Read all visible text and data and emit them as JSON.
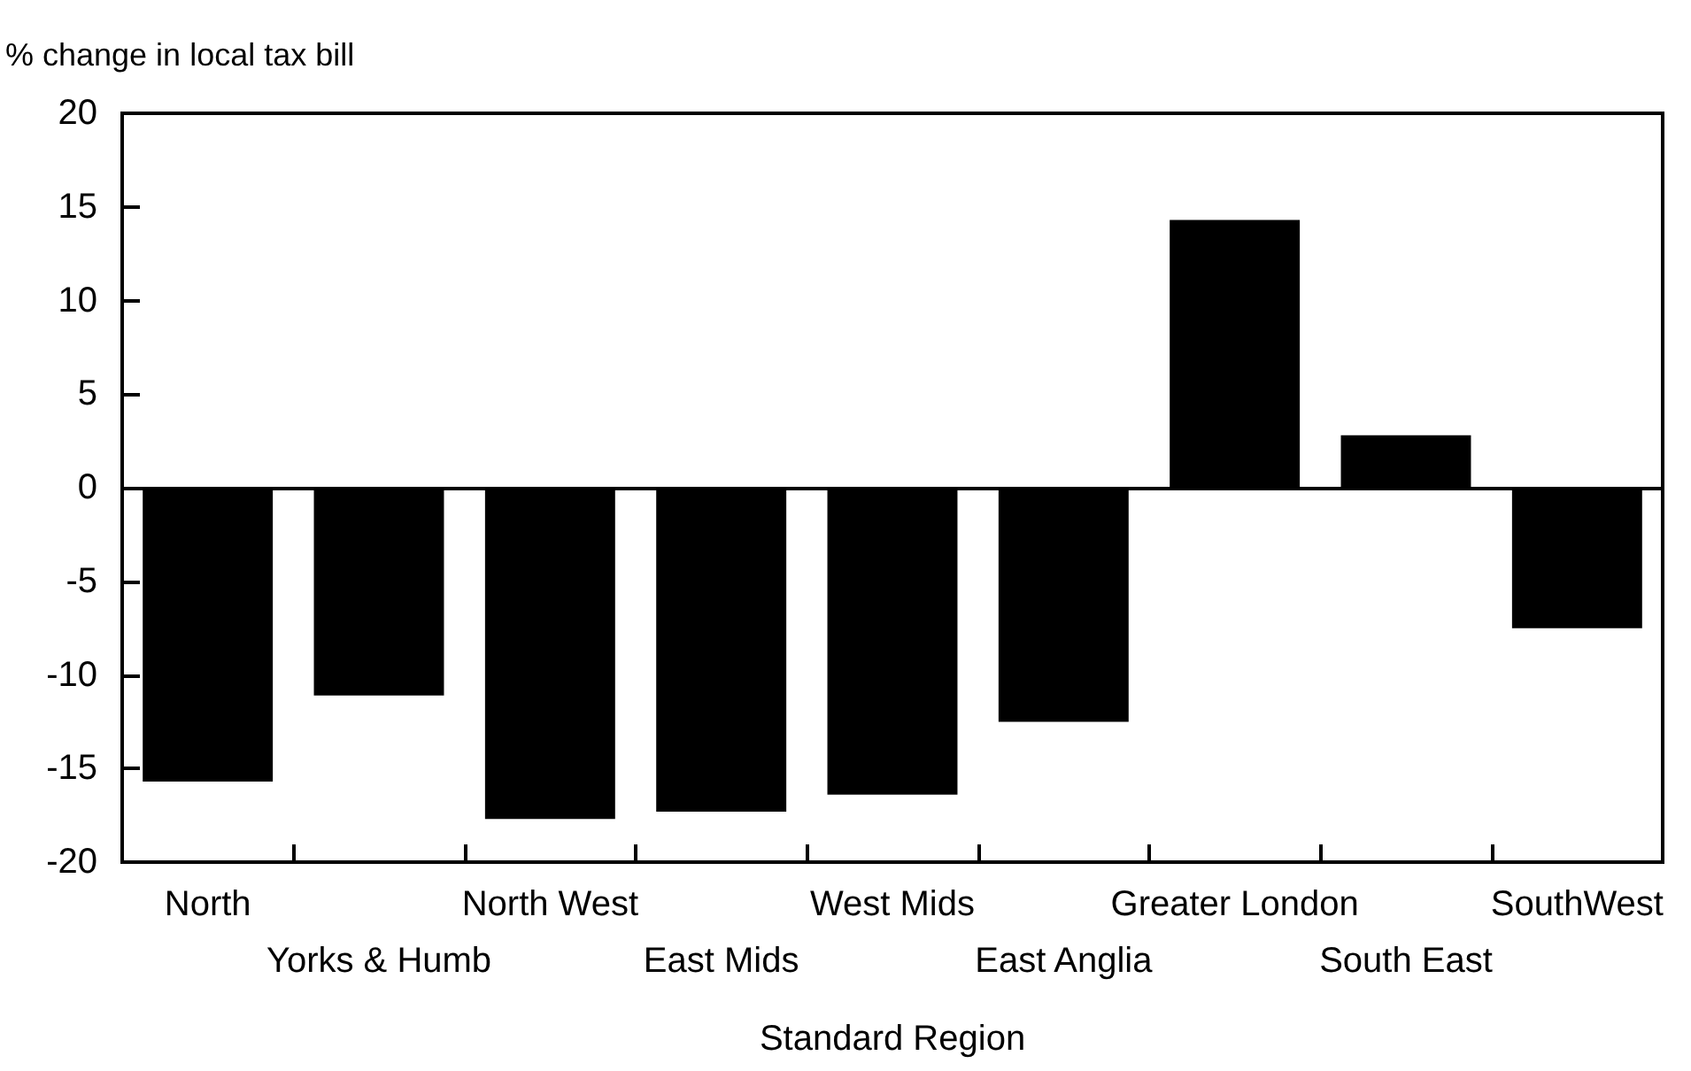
{
  "chart_data": {
    "type": "bar",
    "ylabel": "% change in local tax bill",
    "xlabel": "Standard Region",
    "categories": [
      "North",
      "Yorks & Humb",
      "North West",
      "East Mids",
      "West Mids",
      "East Anglia",
      "Greater London",
      "South East",
      "SouthWest"
    ],
    "values": [
      -15.7,
      -11.1,
      -17.7,
      -17.3,
      -16.4,
      -12.5,
      14.3,
      2.8,
      -7.5
    ],
    "color": "#000000",
    "ylim": [
      -20,
      20
    ],
    "yticks": [
      -20,
      -15,
      -10,
      -5,
      0,
      5,
      10,
      15,
      20
    ]
  }
}
